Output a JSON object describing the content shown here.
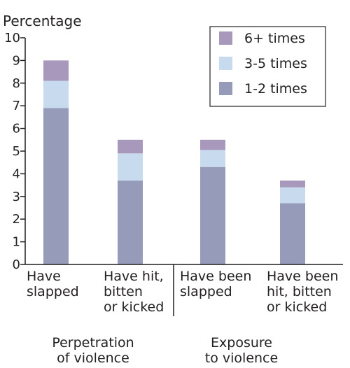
{
  "chart_data": {
    "type": "bar",
    "stacked": true,
    "ylabel": "Percentage",
    "ylim": [
      0,
      10
    ],
    "yticks": [
      "0",
      "1",
      "2",
      "3",
      "4",
      "5",
      "6",
      "7",
      "8",
      "9",
      "10"
    ],
    "grid": false,
    "legend_position": "top-right",
    "categories": [
      [
        "Have",
        "slapped"
      ],
      [
        "Have hit,",
        "bitten",
        "or kicked"
      ],
      [
        "Have been",
        "slapped"
      ],
      [
        "Have been",
        "hit,  bitten",
        "or kicked"
      ]
    ],
    "groups": [
      {
        "label": [
          "Perpetration",
          "of violence"
        ],
        "categories": [
          0,
          1
        ]
      },
      {
        "label": [
          "Exposure",
          "to violence"
        ],
        "categories": [
          2,
          3
        ]
      }
    ],
    "series": [
      {
        "name": "1-2 times",
        "color": "#959bb8",
        "values": [
          6.9,
          3.7,
          4.3,
          2.7
        ]
      },
      {
        "name": "3-5 times",
        "color": "#c7daee",
        "values": [
          1.2,
          1.2,
          0.75,
          0.7
        ]
      },
      {
        "name": "6+ times",
        "color": "#a898bb",
        "values": [
          0.9,
          0.6,
          0.45,
          0.3
        ]
      }
    ],
    "legend_order": [
      2,
      1,
      0
    ]
  }
}
